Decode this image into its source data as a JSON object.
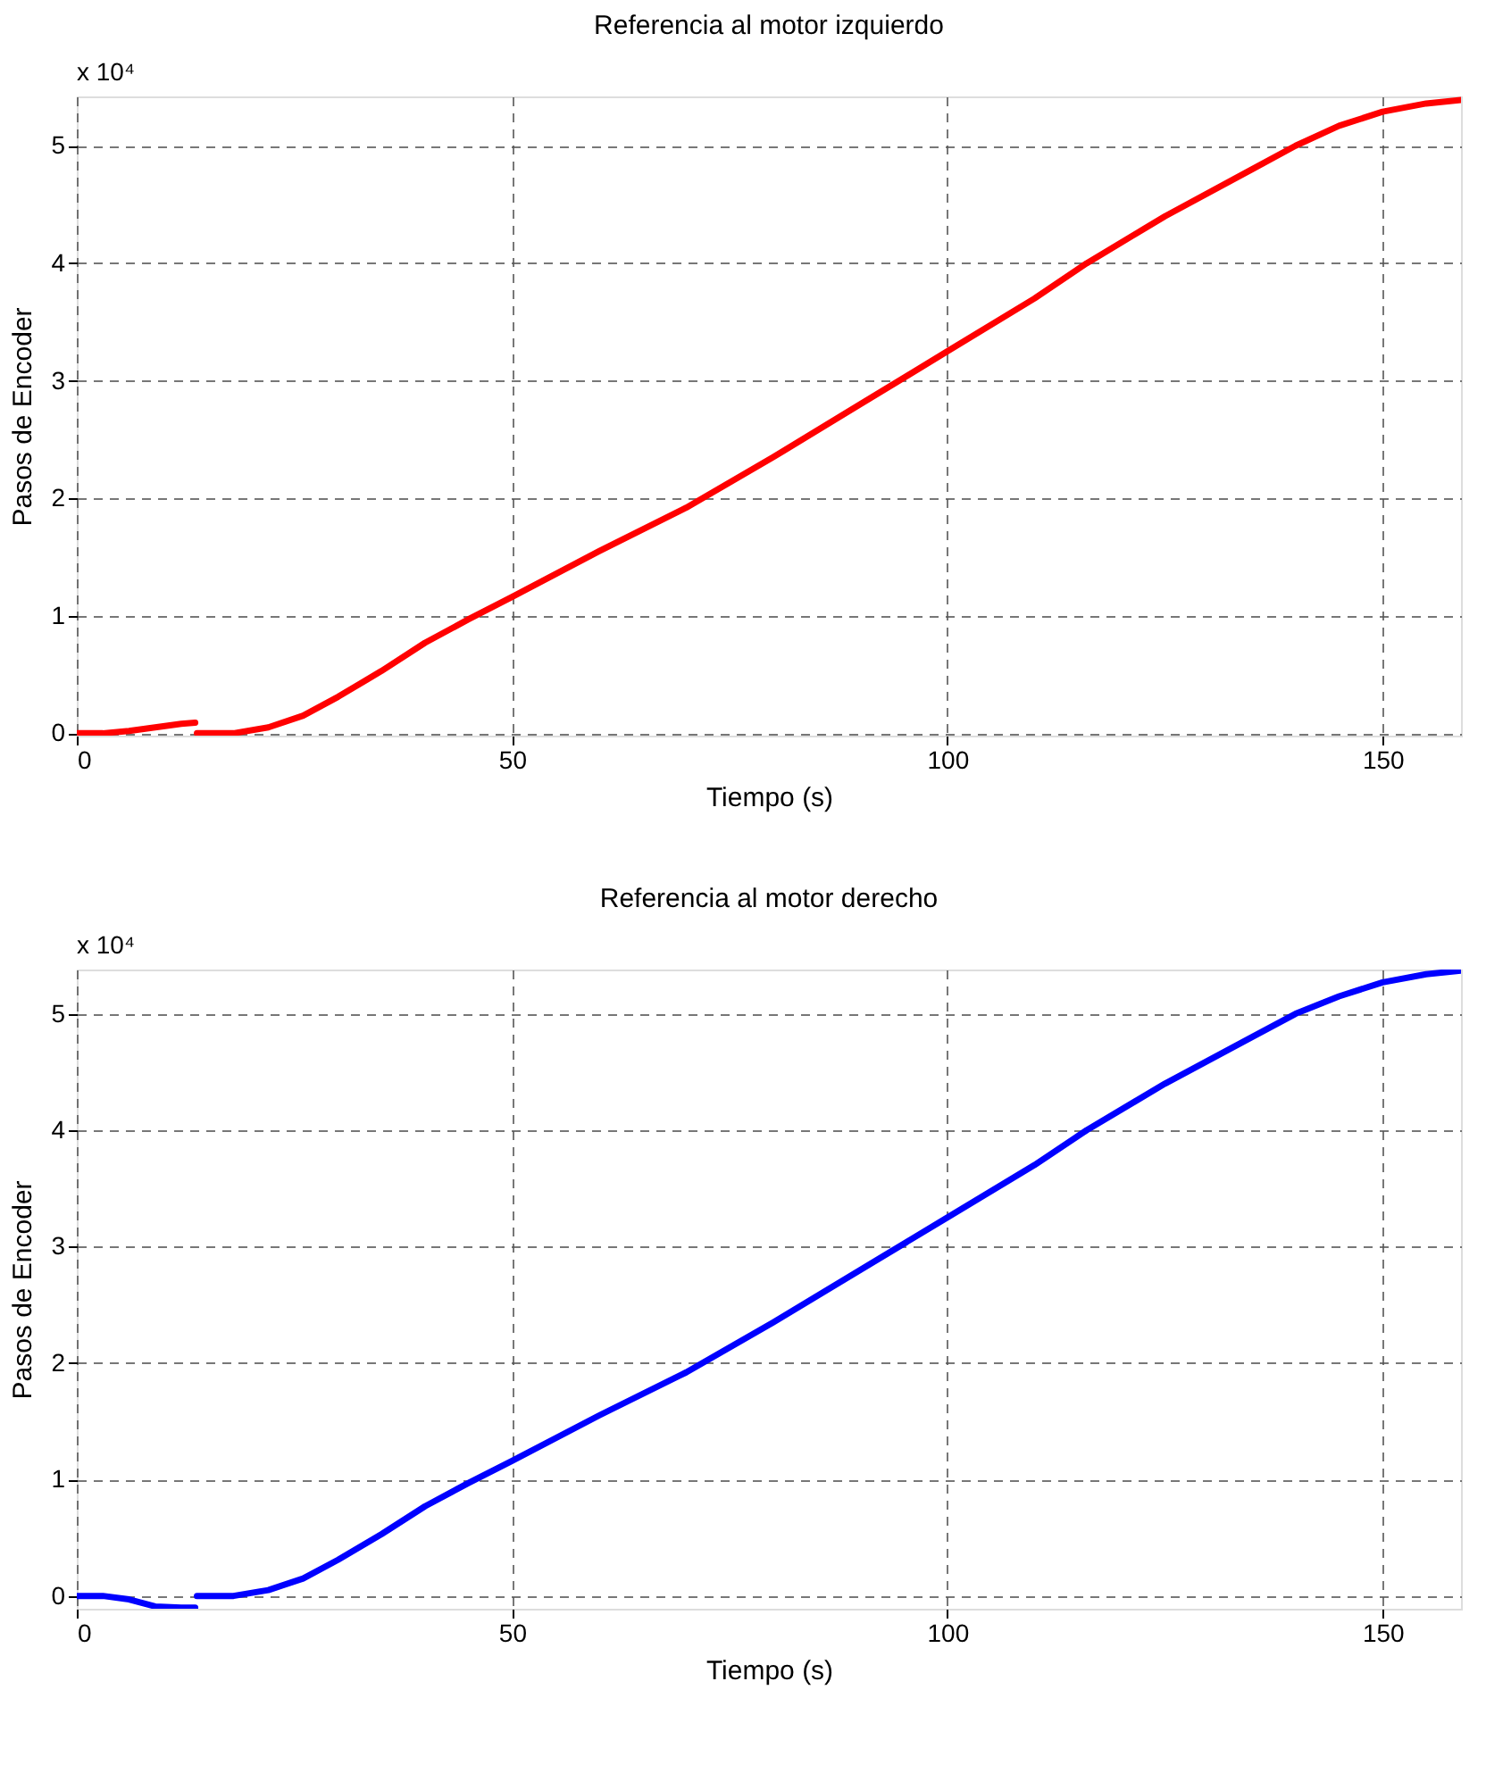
{
  "chart_data": [
    {
      "type": "line",
      "title": "Referencia al motor izquierdo",
      "xlabel": "Tiempo (s)",
      "ylabel": "Pasos de Encoder",
      "annotations": [
        "x 10⁴"
      ],
      "x": [
        0,
        3,
        6,
        9,
        12,
        13.6,
        13.7,
        13.8,
        18,
        22,
        26,
        30,
        35,
        40,
        45,
        50,
        60,
        70,
        80,
        90,
        100,
        110,
        116,
        125,
        135,
        140,
        145,
        150,
        155,
        159
      ],
      "series": [
        {
          "color": "#ff0000",
          "values": [
            0,
            0,
            0.02,
            0.05,
            0.08,
            0.09,
            null,
            0,
            0,
            0.05,
            0.15,
            0.31,
            0.53,
            0.77,
            0.97,
            1.16,
            1.55,
            1.92,
            2.35,
            2.8,
            3.25,
            3.7,
            4.0,
            4.4,
            4.8,
            5.0,
            5.17,
            5.29,
            5.36,
            5.39
          ]
        }
      ],
      "xlim": [
        0,
        159
      ],
      "ylim": [
        -0.02,
        5.42
      ],
      "xticks": [
        0,
        50,
        100,
        150
      ],
      "yticks": [
        0,
        1,
        2,
        3,
        4,
        5
      ],
      "grid": true,
      "line_style": "solid",
      "marker": "none"
    },
    {
      "type": "line",
      "title": "Referencia al motor derecho",
      "xlabel": "Tiempo (s)",
      "ylabel": "Pasos de Encoder",
      "annotations": [
        "x 10⁴"
      ],
      "x": [
        0,
        3,
        6,
        9,
        12,
        13.6,
        13.7,
        13.8,
        18,
        22,
        26,
        30,
        35,
        40,
        45,
        50,
        60,
        70,
        80,
        90,
        100,
        110,
        116,
        125,
        135,
        140,
        145,
        150,
        155,
        159
      ],
      "series": [
        {
          "color": "#0000ff",
          "values": [
            0,
            0,
            -0.03,
            -0.09,
            -0.1,
            -0.1,
            null,
            0,
            0,
            0.05,
            0.15,
            0.31,
            0.53,
            0.77,
            0.97,
            1.16,
            1.55,
            1.92,
            2.35,
            2.8,
            3.25,
            3.7,
            4.0,
            4.4,
            4.8,
            5.0,
            5.15,
            5.27,
            5.34,
            5.37
          ]
        }
      ],
      "xlim": [
        0,
        159
      ],
      "ylim": [
        -0.11,
        5.38
      ],
      "xticks": [
        0,
        50,
        100,
        150
      ],
      "yticks": [
        0,
        1,
        2,
        3,
        4,
        5
      ],
      "grid": true,
      "line_style": "solid",
      "marker": "none"
    }
  ]
}
